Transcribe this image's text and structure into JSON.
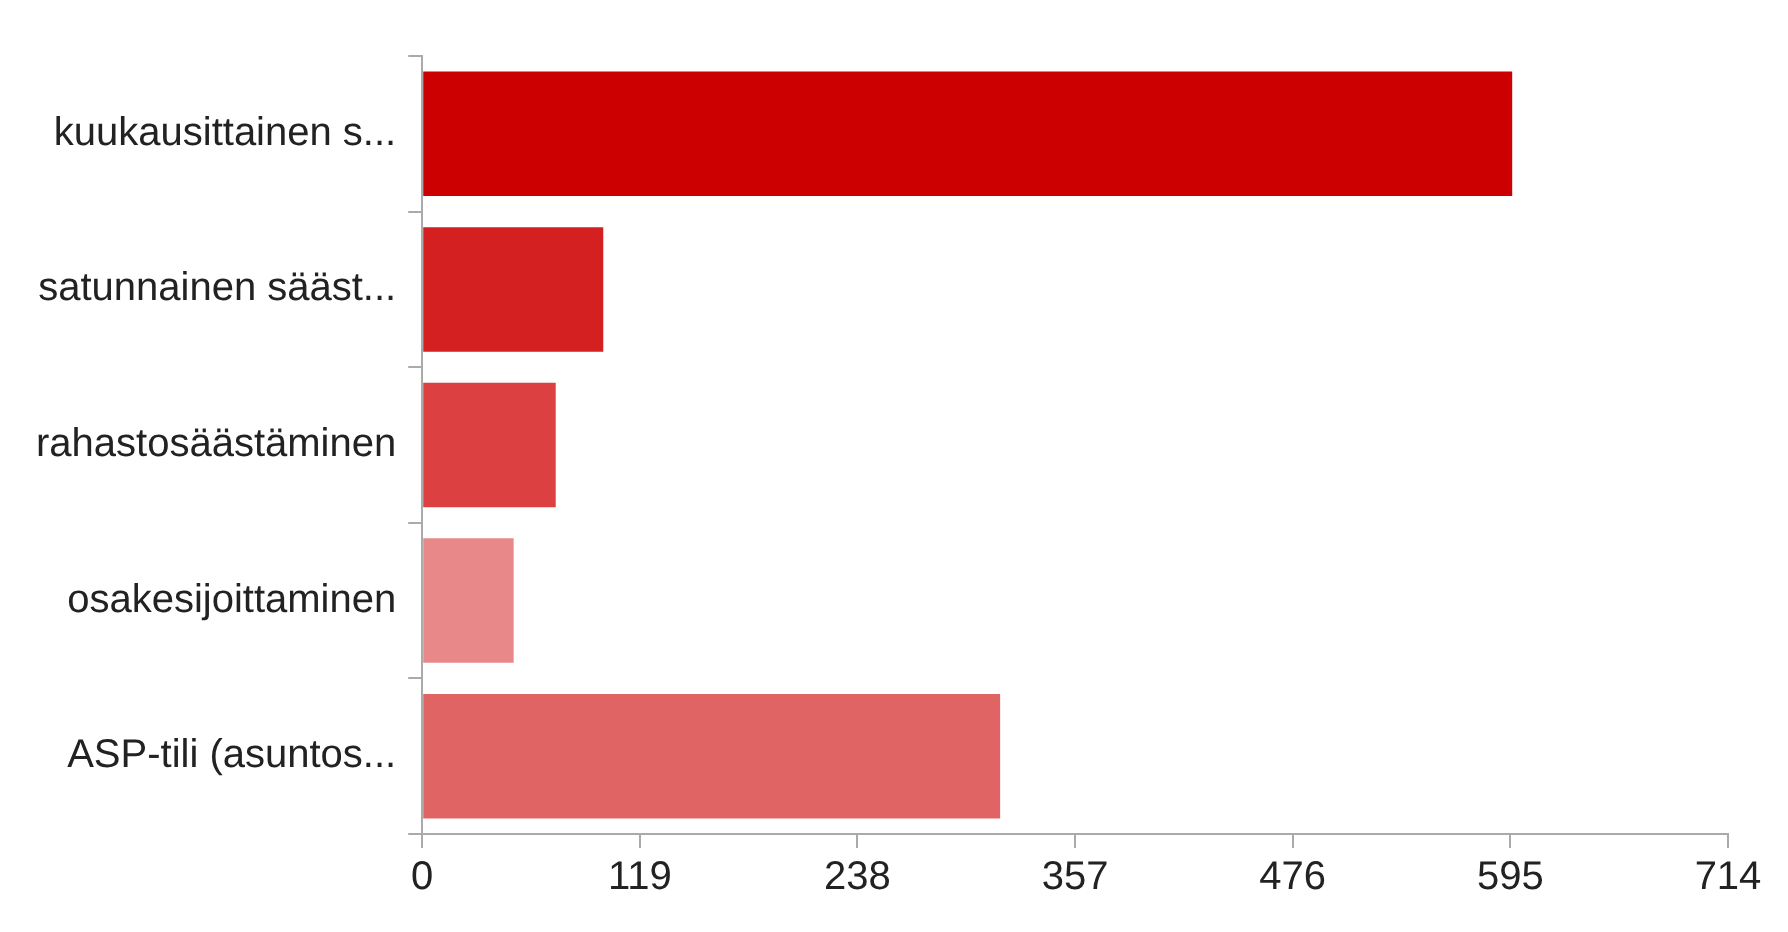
{
  "chart_data": {
    "type": "bar",
    "orientation": "horizontal",
    "categories": [
      "kuukausittainen s...",
      "satunnainen sääst...",
      "rahastosäästäminen",
      "osakesijoittaminen",
      "ASP-tili (asuntos..."
    ],
    "values": [
      596,
      99,
      73,
      50,
      316
    ],
    "colors": [
      "#cc0000",
      "#d42020",
      "#dc4040",
      "#e88888",
      "#e06464"
    ],
    "xlim": [
      0,
      714
    ],
    "xticks": [
      0,
      119,
      238,
      357,
      476,
      595,
      714
    ],
    "grid": false,
    "legend": false
  }
}
